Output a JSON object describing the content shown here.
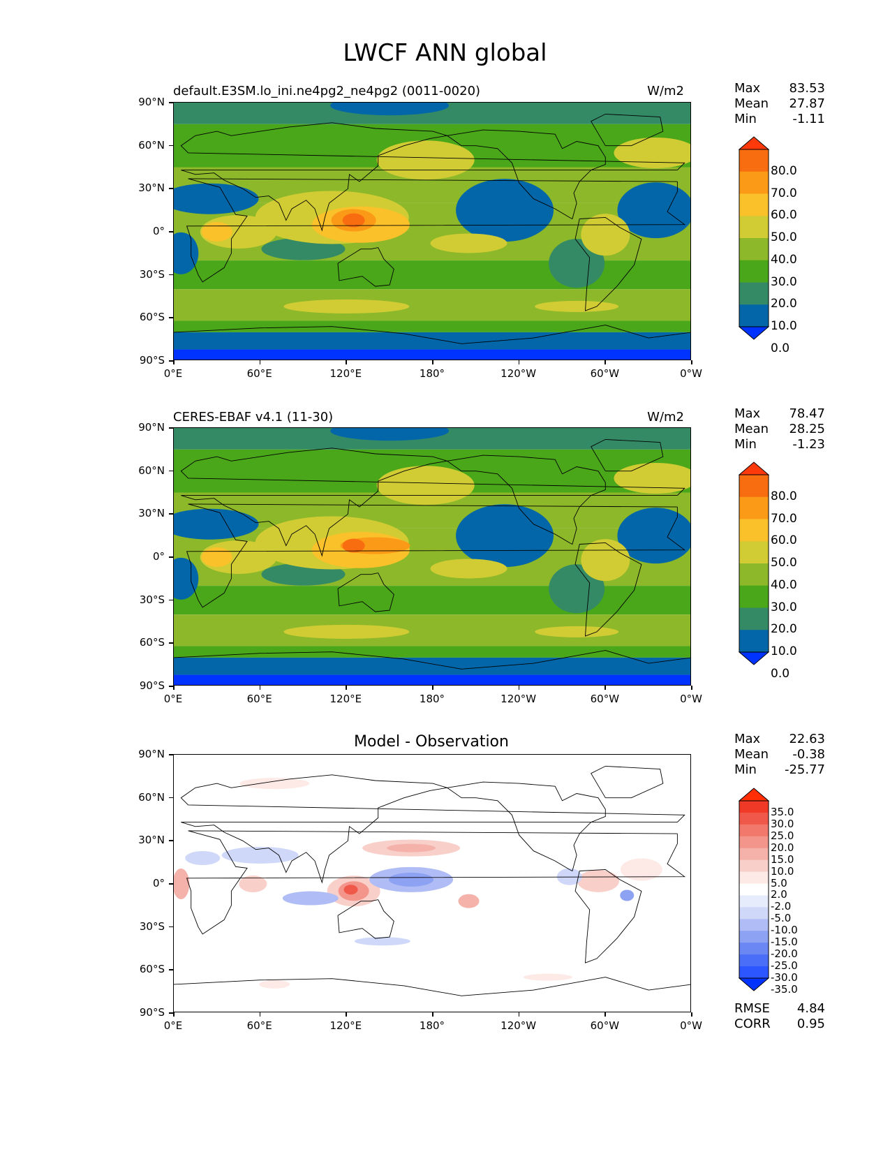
{
  "figure": {
    "title": "LWCF ANN global"
  },
  "panels": [
    {
      "id": "model",
      "title_left": "default.E3SM.lo_ini.ne4pg2_ne4pg2 (0011-0020)",
      "title_right": "W/m2",
      "stats": {
        "max_label": "Max",
        "max": "83.53",
        "mean_label": "Mean",
        "mean": "27.87",
        "min_label": "Min",
        "min": "-1.11"
      },
      "colorbar_ticks": [
        "80.0",
        "70.0",
        "60.0",
        "50.0",
        "40.0",
        "30.0",
        "20.0",
        "10.0",
        "0.0"
      ]
    },
    {
      "id": "obs",
      "title_left": "CERES-EBAF v4.1 (11-30)",
      "title_right": "W/m2",
      "stats": {
        "max_label": "Max",
        "max": "78.47",
        "mean_label": "Mean",
        "mean": "28.25",
        "min_label": "Min",
        "min": "-1.23"
      },
      "colorbar_ticks": [
        "80.0",
        "70.0",
        "60.0",
        "50.0",
        "40.0",
        "30.0",
        "20.0",
        "10.0",
        "0.0"
      ]
    },
    {
      "id": "diff",
      "title_center": "Model - Observation",
      "stats": {
        "max_label": "Max",
        "max": "22.63",
        "mean_label": "Mean",
        "mean": "-0.38",
        "min_label": "Min",
        "min": "-25.77"
      },
      "colorbar_ticks": [
        "35.0",
        "30.0",
        "25.0",
        "20.0",
        "15.0",
        "10.0",
        "5.0",
        "2.0",
        "-2.0",
        "-5.0",
        "-10.0",
        "-15.0",
        "-20.0",
        "-25.0",
        "-30.0",
        "-35.0"
      ],
      "metrics": {
        "rmse_label": "RMSE",
        "rmse": "4.84",
        "corr_label": "CORR",
        "corr": "0.95"
      }
    }
  ],
  "axes": {
    "y_ticks": [
      "90°N",
      "60°N",
      "30°N",
      "0°",
      "30°S",
      "60°S",
      "90°S"
    ],
    "x_ticks": [
      "0°E",
      "60°E",
      "120°E",
      "180°",
      "120°W",
      "60°W",
      "0°W"
    ]
  },
  "colors": {
    "field_levels": [
      "#0033ff",
      "#0366a8",
      "#358a66",
      "#4aa71a",
      "#8cb82a",
      "#d2cc34",
      "#fac12a",
      "#fb9a17",
      "#f96d11",
      "#fe3a0c"
    ],
    "diff_levels": [
      "#0033ff",
      "#2c56ff",
      "#4a6ef7",
      "#6b87f3",
      "#8ea2f3",
      "#afbcf5",
      "#cfd8f8",
      "#e6ecfb",
      "#ffffff",
      "#fde9e6",
      "#f9cfc9",
      "#f5b2aa",
      "#f3958a",
      "#f1786b",
      "#f0584a",
      "#f03a27",
      "#ff2e05"
    ]
  },
  "chart_data": [
    {
      "type": "heatmap",
      "title": "default.E3SM.lo_ini.ne4pg2_ne4pg2 (0011-0020)",
      "units": "W/m2",
      "x_range": [
        0,
        360
      ],
      "y_range": [
        -90,
        90
      ],
      "levels": [
        0,
        10,
        20,
        30,
        40,
        50,
        60,
        70,
        80
      ],
      "stats": {
        "max": 83.53,
        "mean": 27.87,
        "min": -1.11
      },
      "features": [
        {
          "lon": 125,
          "lat": 8,
          "value": 75
        },
        {
          "lon": 40,
          "lat": 0,
          "value": 50
        },
        {
          "lon": 300,
          "lat": 0,
          "value": 50
        },
        {
          "lon": 220,
          "lat": 10,
          "value": 15
        },
        {
          "lon": 335,
          "lat": 15,
          "value": 8
        },
        {
          "lon": 180,
          "lat": -85,
          "value": 0
        }
      ]
    },
    {
      "type": "heatmap",
      "title": "CERES-EBAF v4.1 (11-30)",
      "units": "W/m2",
      "x_range": [
        0,
        360
      ],
      "y_range": [
        -90,
        90
      ],
      "levels": [
        0,
        10,
        20,
        30,
        40,
        50,
        60,
        70,
        80
      ],
      "stats": {
        "max": 78.47,
        "mean": 28.25,
        "min": -1.23
      },
      "features": [
        {
          "lon": 140,
          "lat": 8,
          "value": 65
        },
        {
          "lon": 40,
          "lat": 0,
          "value": 45
        },
        {
          "lon": 300,
          "lat": 0,
          "value": 45
        },
        {
          "lon": 230,
          "lat": -10,
          "value": 12
        },
        {
          "lon": 345,
          "lat": 10,
          "value": 8
        },
        {
          "lon": 180,
          "lat": -85,
          "value": 0
        }
      ]
    },
    {
      "type": "heatmap",
      "title": "Model - Observation",
      "x_range": [
        0,
        360
      ],
      "y_range": [
        -90,
        90
      ],
      "levels": [
        -35,
        -30,
        -25,
        -20,
        -15,
        -10,
        -5,
        -2,
        2,
        5,
        10,
        15,
        20,
        25,
        30,
        35
      ],
      "stats": {
        "max": 22.63,
        "mean": -0.38,
        "min": -25.77
      },
      "metrics": {
        "rmse": 4.84,
        "corr": 0.95
      },
      "features": [
        {
          "lon": 125,
          "lat": -5,
          "value": 20
        },
        {
          "lon": 165,
          "lat": 5,
          "value": -22
        },
        {
          "lon": 165,
          "lat": 25,
          "value": 15
        },
        {
          "lon": 60,
          "lat": 20,
          "value": -10
        },
        {
          "lon": 85,
          "lat": -10,
          "value": -12
        },
        {
          "lon": 5,
          "lat": 0,
          "value": 12
        },
        {
          "lon": 295,
          "lat": 0,
          "value": 10
        }
      ]
    }
  ]
}
